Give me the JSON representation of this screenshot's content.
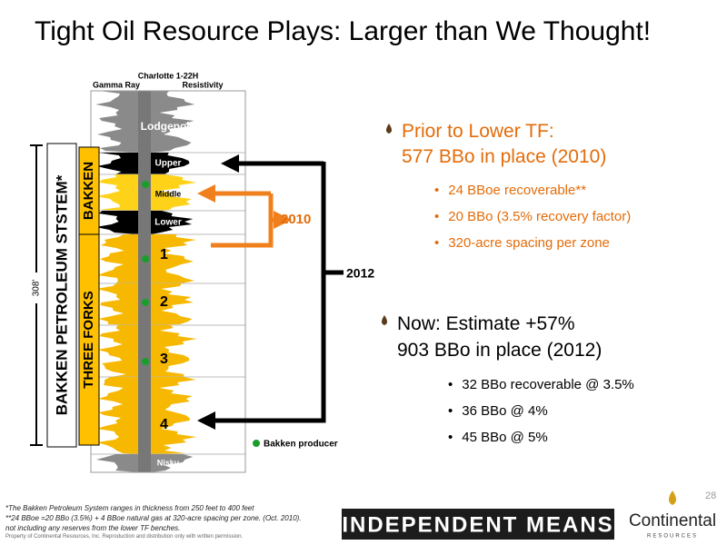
{
  "title": "Tight Oil Resource Plays: Larger than We Thought!",
  "well_log": {
    "well_name": "Charlotte 1-22H",
    "tracks": [
      "Gamma Ray",
      "Resistivity"
    ],
    "formations": [
      "Lodgepole",
      "Upper",
      "Middle",
      "Lower",
      "1",
      "2",
      "3",
      "4",
      "Nisku"
    ],
    "system_label": "BAKKEN PETROLEUM STSTEM*",
    "bakken_label": "BAKKEN",
    "three_forks_label": "THREE FORKS",
    "thickness_label": "308'",
    "legend": "Bakken producer"
  },
  "arrow_labels": [
    "2010",
    "2012"
  ],
  "sections": [
    {
      "heading": [
        "Prior to Lower TF:",
        "577 BBo in place (2010)"
      ],
      "bullets": [
        "24 BBoe recoverable**",
        "20 BBo (3.5% recovery factor)",
        "320-acre spacing per zone"
      ]
    },
    {
      "heading": [
        "Now: Estimate +57%",
        "903 BBo in place (2012)"
      ],
      "bullets": [
        "32 BBo recoverable @ 3.5%",
        "36 BBo @ 4%",
        "45 BBo @ 5%"
      ]
    }
  ],
  "footnotes": [
    "*The Bakken Petroleum System ranges in thickness from 250 feet to 400 feet",
    "**24 BBoe =20 BBo (3.5%) + 4 BBoe natural gas at 320-acre spacing per zone. (Oct. 2010).",
    "not including any reserves from the lower TF benches.",
    "Property of Continental Resources, Inc. Reproduction and distribution only with written permission."
  ],
  "page_number": "28",
  "footer": {
    "banner": "INDEPENDENT MEANS",
    "logo": "Continental",
    "logo_sub": "RESOURCES"
  }
}
